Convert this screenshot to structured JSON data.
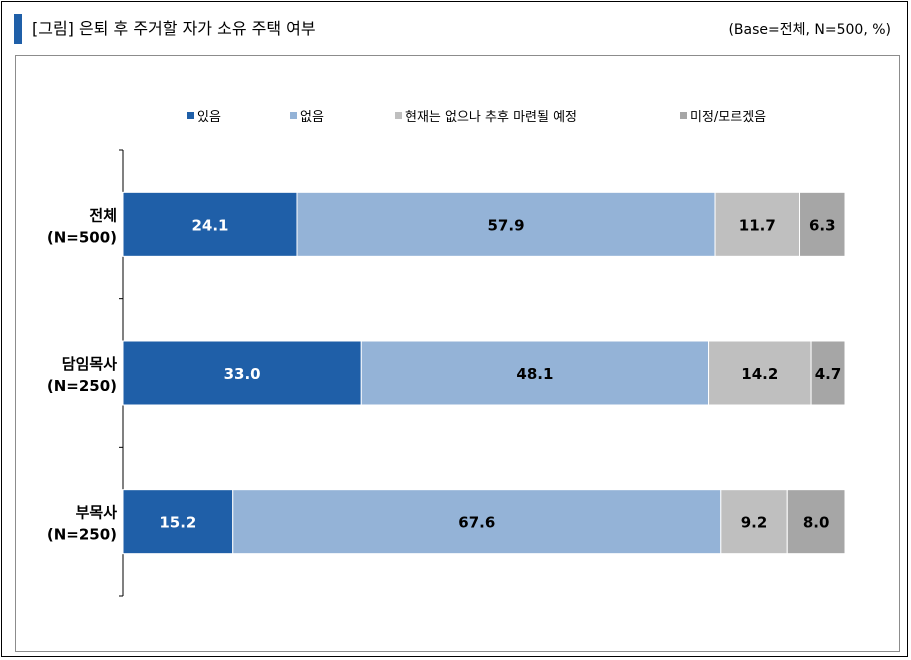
{
  "header": {
    "title": "[그림] 은퇴 후 주거할 자가 소유 주택 여부",
    "base_note": "(Base=전체, N=500, %)"
  },
  "chart_data": {
    "type": "bar",
    "orientation": "horizontal",
    "stacked": true,
    "categories": [
      [
        "전체",
        "(N=500)"
      ],
      [
        "담임목사",
        "(N=250)"
      ],
      [
        "부목사",
        "(N=250)"
      ]
    ],
    "series": [
      {
        "name": "있음",
        "color": "#1f5fa8",
        "label_color": "#ffffff",
        "values": [
          24.1,
          33.0,
          15.2
        ]
      },
      {
        "name": "없음",
        "color": "#94b3d7",
        "label_color": "#000000",
        "values": [
          57.9,
          48.1,
          67.6
        ]
      },
      {
        "name": "현재는 없으나 추후 마련될 예정",
        "color": "#bfbfbf",
        "label_color": "#000000",
        "values": [
          11.7,
          14.2,
          9.2
        ]
      },
      {
        "name": "미정/모르겠음",
        "color": "#a6a6a6",
        "label_color": "#000000",
        "values": [
          6.3,
          4.7,
          8.0
        ]
      }
    ],
    "xlim": [
      0,
      100
    ],
    "grid": false,
    "legend": "top"
  }
}
